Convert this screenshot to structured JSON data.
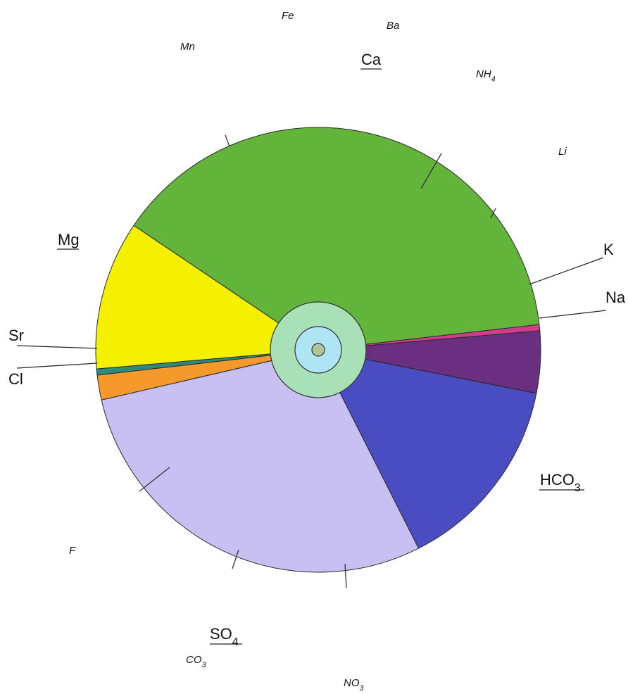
{
  "chart_data": {
    "type": "pie",
    "title": "",
    "slices": [
      {
        "label": "Ca",
        "value": 43.0,
        "color": "#62b43a"
      },
      {
        "label": "K",
        "value": 0.5,
        "color": "#d23c8c"
      },
      {
        "label": "Na",
        "value": 5.0,
        "color": "#6a2f80"
      },
      {
        "label": "HCO3",
        "value": 16.0,
        "color": "#4a4cc2"
      },
      {
        "label": "SO4",
        "value": 32.0,
        "color": "#c8c0f2"
      },
      {
        "label": "Cl",
        "value": 2.0,
        "color": "#f59a2a"
      },
      {
        "label": "Sr",
        "value": 0.5,
        "color": "#2e8a7a"
      },
      {
        "label": "Mg",
        "value": 12.0,
        "color": "#f5f000"
      }
    ],
    "inner_rings": [
      {
        "name": "outer ring",
        "color": "#a8e0b8"
      },
      {
        "name": "middle ring",
        "color": "#aee4f4"
      },
      {
        "name": "core",
        "color": "#b2c49a"
      }
    ],
    "labels": {
      "Fe": "Fe",
      "Ba": "Ba",
      "Mn": "Mn",
      "Ca": "Ca",
      "NH4": "NH4",
      "Li": "Li",
      "Mg": "Mg",
      "K": "K",
      "Na": "Na",
      "Sr": "Sr",
      "Cl": "Cl",
      "HCO3": "HCO3",
      "F": "F",
      "SO4": "SO4",
      "CO3": "CO3",
      "NO3": "NO3"
    }
  }
}
